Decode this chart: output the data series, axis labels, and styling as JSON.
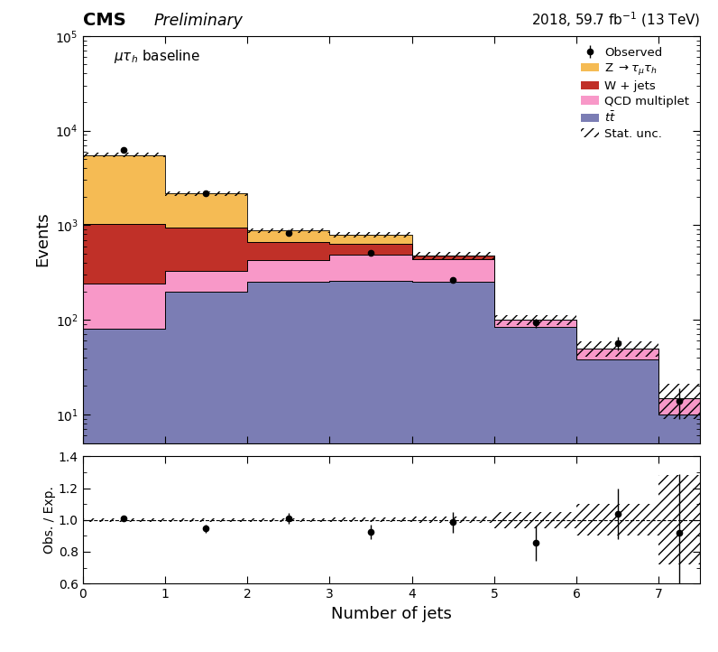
{
  "title_cms": "CMS",
  "title_prelim": "Preliminary",
  "title_lumi": "2018, 59.7 fb$^{-1}$ (13 TeV)",
  "label_baseline": "$\\mu\\tau_h$ baseline",
  "xlabel": "Number of jets",
  "ylabel_main": "Events",
  "ylabel_ratio": "Obs. / Exp.",
  "bin_edges": [
    0,
    1,
    2,
    3,
    4,
    5,
    6,
    7,
    7.5
  ],
  "bin_centers": [
    0.5,
    1.5,
    2.5,
    3.5,
    4.5,
    5.5,
    6.5,
    7.25
  ],
  "ttbar": [
    80,
    200,
    250,
    260,
    250,
    85,
    38,
    10
  ],
  "qcd": [
    160,
    130,
    180,
    230,
    190,
    15,
    12,
    5
  ],
  "wjets": [
    780,
    620,
    240,
    140,
    40,
    0,
    0,
    0
  ],
  "zjets": [
    4500,
    1200,
    210,
    160,
    0,
    0,
    0,
    0
  ],
  "observed": [
    6300,
    2150,
    820,
    510,
    265,
    93,
    57,
    14
  ],
  "obs_err_up": [
    85,
    52,
    30,
    24,
    17,
    10,
    9,
    5
  ],
  "obs_err_dn": [
    85,
    52,
    30,
    24,
    17,
    10,
    9,
    5
  ],
  "ratio": [
    1.01,
    0.945,
    1.01,
    0.925,
    0.985,
    0.855,
    1.04,
    0.92
  ],
  "ratio_err_up": [
    0.014,
    0.024,
    0.035,
    0.047,
    0.065,
    0.11,
    0.16,
    0.37
  ],
  "ratio_err_dn": [
    0.014,
    0.024,
    0.035,
    0.047,
    0.065,
    0.11,
    0.16,
    0.37
  ],
  "stat_unc_ratio_up": [
    0.01,
    0.01,
    0.01,
    0.015,
    0.02,
    0.05,
    0.1,
    0.28
  ],
  "stat_unc_ratio_dn": [
    0.01,
    0.01,
    0.01,
    0.015,
    0.02,
    0.05,
    0.1,
    0.28
  ],
  "color_zjets": "#F5BB54",
  "color_wjets": "#C03028",
  "color_qcd": "#F898C8",
  "color_ttbar": "#7B7DB4",
  "ylim_main": [
    5,
    100000
  ],
  "ylim_ratio": [
    0.6,
    1.4
  ],
  "yticks_ratio": [
    0.6,
    0.8,
    1.0,
    1.2,
    1.4
  ],
  "xticks": [
    0,
    1,
    2,
    3,
    4,
    5,
    6,
    7
  ]
}
